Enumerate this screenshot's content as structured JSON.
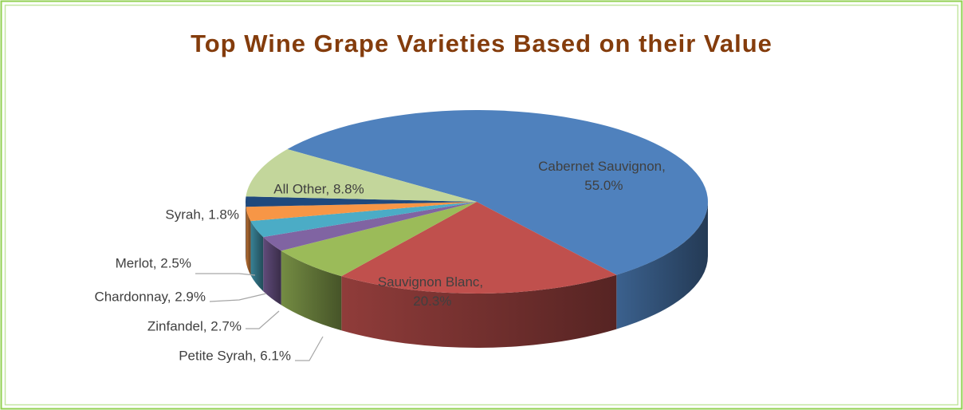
{
  "chart_data": {
    "type": "pie",
    "title": "Top Wine Grape Varieties Based on their Value",
    "values": [
      55.0,
      20.3,
      6.1,
      2.7,
      2.9,
      2.5,
      1.8,
      8.8
    ],
    "value_labels": [
      "Cabernet Sauvignon, 55.0%",
      "Sauvignon Blanc, 20.3%",
      "Petite Syrah, 6.1%",
      "Zinfandel, 2.7%",
      "Chardonnay, 2.9%",
      "Merlot, 2.5%",
      "Syrah, 1.8%",
      "All Other, 8.8%"
    ],
    "colors": [
      "#4F81BD",
      "#C0504D",
      "#9BBB59",
      "#8064A2",
      "#4BACC6",
      "#F79646",
      "#1F497D",
      "#C3D69B"
    ]
  }
}
